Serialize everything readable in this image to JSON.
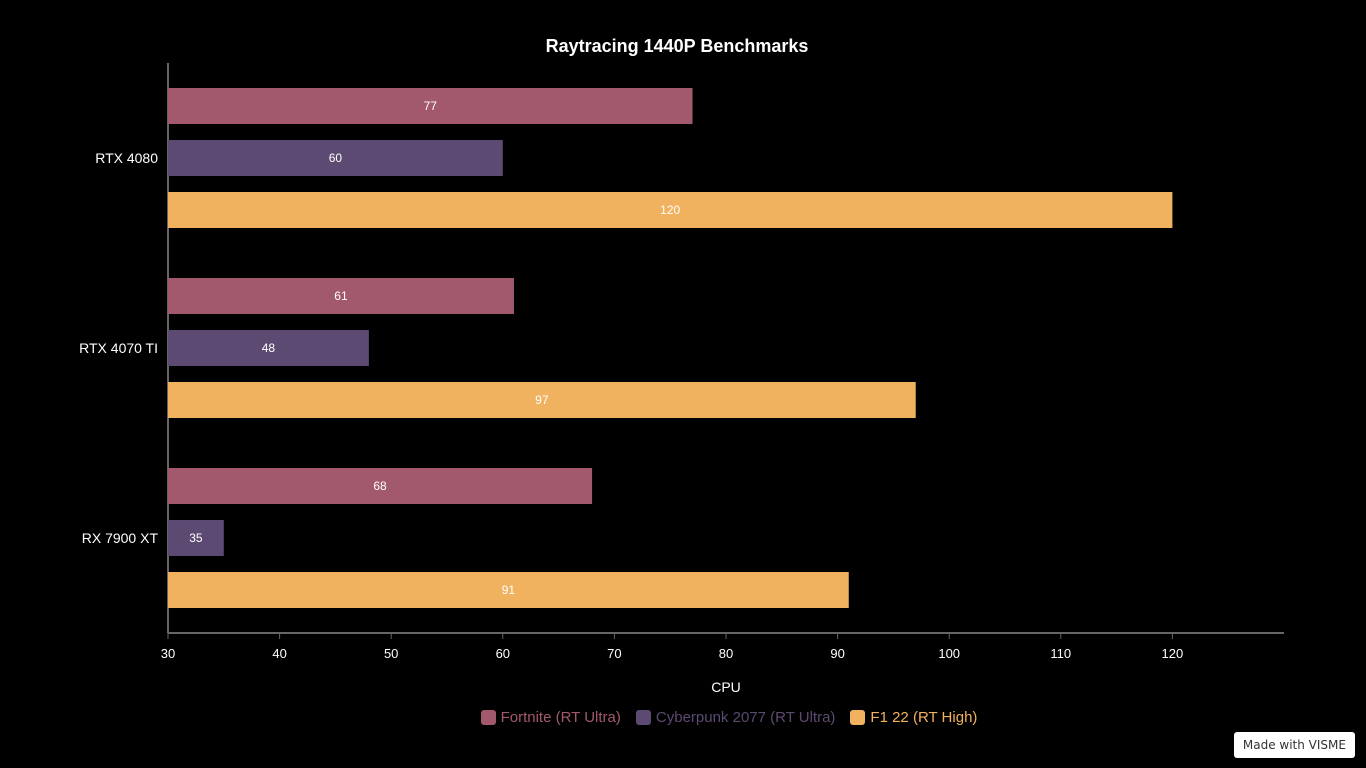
{
  "chart_data": {
    "type": "bar",
    "orientation": "horizontal",
    "title": "Raytracing 1440P Benchmarks",
    "xlabel": "CPU",
    "ylabel": "",
    "xlim": [
      30,
      130
    ],
    "x_ticks": [
      30,
      40,
      50,
      60,
      70,
      80,
      90,
      100,
      110,
      120
    ],
    "grid": false,
    "legend_position": "bottom-center",
    "categories": [
      "RTX 4080",
      "RTX 4070 TI",
      "RX 7900 XT"
    ],
    "series": [
      {
        "name": "Fortnite (RT Ultra)",
        "color": "#a3596c",
        "values": [
          77,
          61,
          68
        ]
      },
      {
        "name": "Cyberpunk 2077 (RT Ultra)",
        "color": "#5d4a72",
        "values": [
          60,
          48,
          35
        ]
      },
      {
        "name": "F1 22 (RT High)",
        "color": "#f0b25f",
        "values": [
          120,
          97,
          91
        ]
      }
    ]
  },
  "watermark": "Made with VISME"
}
